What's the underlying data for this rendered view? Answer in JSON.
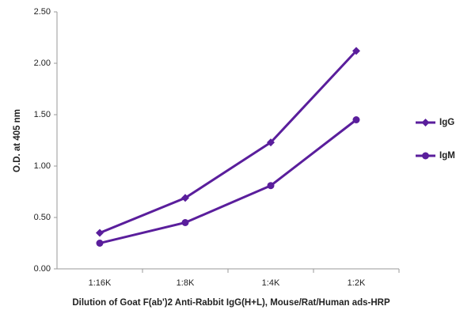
{
  "chart_data": {
    "type": "line",
    "x_label": "Dilution of Goat F(ab')2 Anti-Rabbit IgG(H+L), Mouse/Rat/Human ads-HRP",
    "y_label": "O.D. at 405 nm",
    "categories": [
      "1:16K",
      "1:8K",
      "1:4K",
      "1:2K"
    ],
    "series": [
      {
        "name": "IgG",
        "color": "#5a1e9c",
        "marker": "diamond",
        "values": [
          0.35,
          0.69,
          1.23,
          2.12
        ]
      },
      {
        "name": "IgM",
        "color": "#5a1e9c",
        "marker": "circle",
        "values": [
          0.25,
          0.45,
          0.81,
          1.45
        ]
      }
    ],
    "ylim": [
      0,
      2.5
    ],
    "yticks": [
      {
        "value": 0,
        "label": "0.00"
      },
      {
        "value": 0.5,
        "label": "0.50"
      },
      {
        "value": 1,
        "label": "1.00"
      },
      {
        "value": 1.5,
        "label": "1.50"
      },
      {
        "value": 2,
        "label": "2.00"
      },
      {
        "value": 2.5,
        "label": "2.50"
      }
    ],
    "grid": false,
    "legend": "right"
  }
}
